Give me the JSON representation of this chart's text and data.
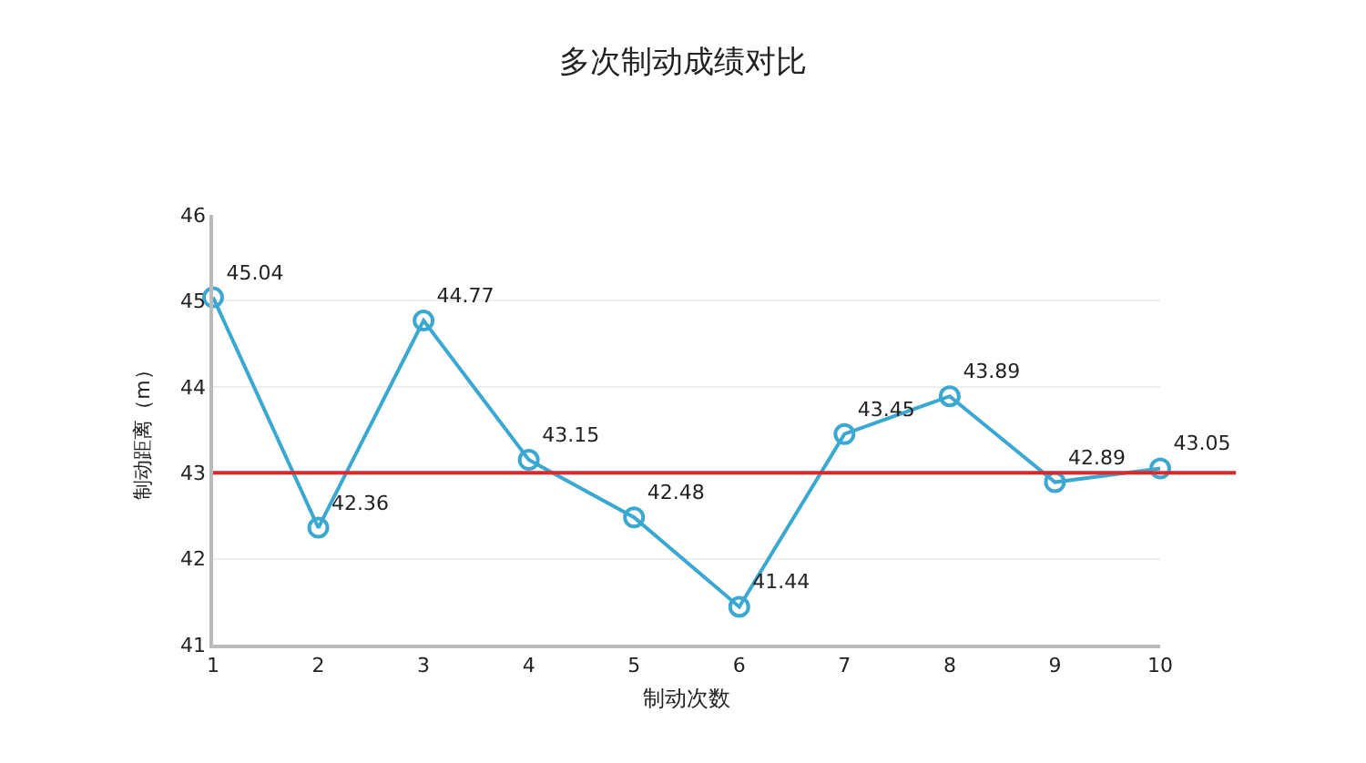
{
  "chart_data": {
    "type": "line",
    "title": "多次制动成绩对比",
    "xlabel": "制动次数",
    "ylabel": "制动距离（m）",
    "x": [
      1,
      2,
      3,
      4,
      5,
      6,
      7,
      8,
      9,
      10
    ],
    "series": [
      {
        "color": "#3aa8d0",
        "values": [
          45.04,
          42.36,
          44.77,
          43.15,
          42.48,
          41.44,
          43.45,
          43.89,
          42.89,
          43.05
        ]
      }
    ],
    "xlim": [
      1,
      10
    ],
    "xticks": [
      1,
      2,
      3,
      4,
      5,
      6,
      7,
      8,
      9,
      10
    ],
    "ylim": [
      41,
      46
    ],
    "yticks": [
      41,
      42,
      43,
      44,
      45,
      46
    ],
    "grid": "y",
    "legend": false,
    "marker": "circle",
    "line_style": "solid",
    "data_labels": true,
    "ref_lines": [
      {
        "axis": "y",
        "value": 43,
        "color": "#e0262a"
      }
    ]
  }
}
